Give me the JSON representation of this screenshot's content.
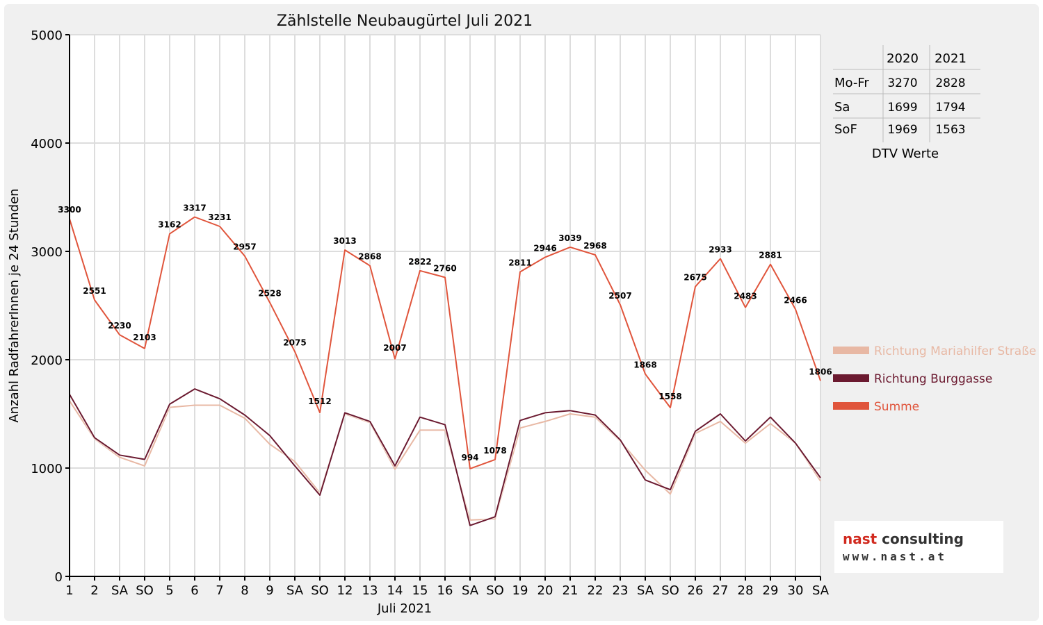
{
  "colors": {
    "mariahilfer": "#e8b8a4",
    "burggasse": "#6b1a30",
    "summe": "#e0553c",
    "sunday_tick": "#e00000"
  },
  "dtv_table": {
    "col_headers": [
      "2020",
      "2021"
    ],
    "rows": [
      {
        "label": "Mo-Fr",
        "v2020": "3270",
        "v2021": "2828"
      },
      {
        "label": "Sa",
        "v2020": "1699",
        "v2021": "1794"
      },
      {
        "label": "SoF",
        "v2020": "1969",
        "v2021": "1563"
      }
    ],
    "caption": "DTV Werte"
  },
  "logo": {
    "brand_a": "nast",
    "brand_b": " consulting",
    "url": "www.nast.at"
  },
  "chart_data": {
    "type": "line",
    "title": "Zählstelle Neubaugürtel Juli 2021",
    "xlabel": "Juli 2021",
    "ylabel": "Anzahl RadfahrerInnen je 24 Stunden",
    "ylim": [
      0,
      5000
    ],
    "yticks": [
      "0",
      "1000",
      "2000",
      "3000",
      "4000",
      "5000"
    ],
    "grid": true,
    "legend_position": "right",
    "categories": [
      "1",
      "2",
      "SA",
      "SO",
      "5",
      "6",
      "7",
      "8",
      "9",
      "SA",
      "SO",
      "12",
      "13",
      "14",
      "15",
      "16",
      "SA",
      "SO",
      "19",
      "20",
      "21",
      "22",
      "23",
      "SA",
      "SO",
      "26",
      "27",
      "28",
      "29",
      "30",
      "SA"
    ],
    "sunday_indices": [
      3,
      10,
      17,
      24
    ],
    "series": [
      {
        "name": "Richtung Mariahilfer Straße",
        "color_key": "mariahilfer",
        "values": [
          1620,
          1270,
          1100,
          1020,
          1560,
          1580,
          1580,
          1460,
          1220,
          1060,
          770,
          1500,
          1420,
          990,
          1350,
          1350,
          520,
          530,
          1370,
          1430,
          1500,
          1470,
          1250,
          980,
          760,
          1320,
          1430,
          1230,
          1410,
          1230,
          880
        ]
      },
      {
        "name": "Richtung Burggasse",
        "color_key": "burggasse",
        "values": [
          1680,
          1280,
          1120,
          1080,
          1590,
          1730,
          1640,
          1490,
          1300,
          1020,
          750,
          1510,
          1430,
          1020,
          1470,
          1400,
          470,
          550,
          1440,
          1510,
          1530,
          1490,
          1260,
          890,
          800,
          1340,
          1500,
          1250,
          1470,
          1230,
          910
        ]
      },
      {
        "name": "Summe",
        "color_key": "summe",
        "values": [
          3300,
          2551,
          2230,
          2103,
          3162,
          3317,
          3231,
          2957,
          2528,
          2075,
          1512,
          3013,
          2868,
          2007,
          2822,
          2760,
          994,
          1078,
          2811,
          2946,
          3039,
          2968,
          2507,
          1868,
          1558,
          2675,
          2933,
          2483,
          2881,
          2466,
          1806
        ]
      }
    ],
    "data_labels": [
      "3300",
      "2551",
      "2230",
      "2103",
      "3162",
      "3317",
      "3231",
      "2957",
      "2528",
      "2075",
      "1512",
      "3013",
      "2868",
      "2007",
      "2822",
      "2760",
      "994",
      "1078",
      "2811",
      "2946",
      "3039",
      "2968",
      "2507",
      "1868",
      "1558",
      "2675",
      "2933",
      "2483",
      "2881",
      "2466",
      "1806"
    ]
  }
}
